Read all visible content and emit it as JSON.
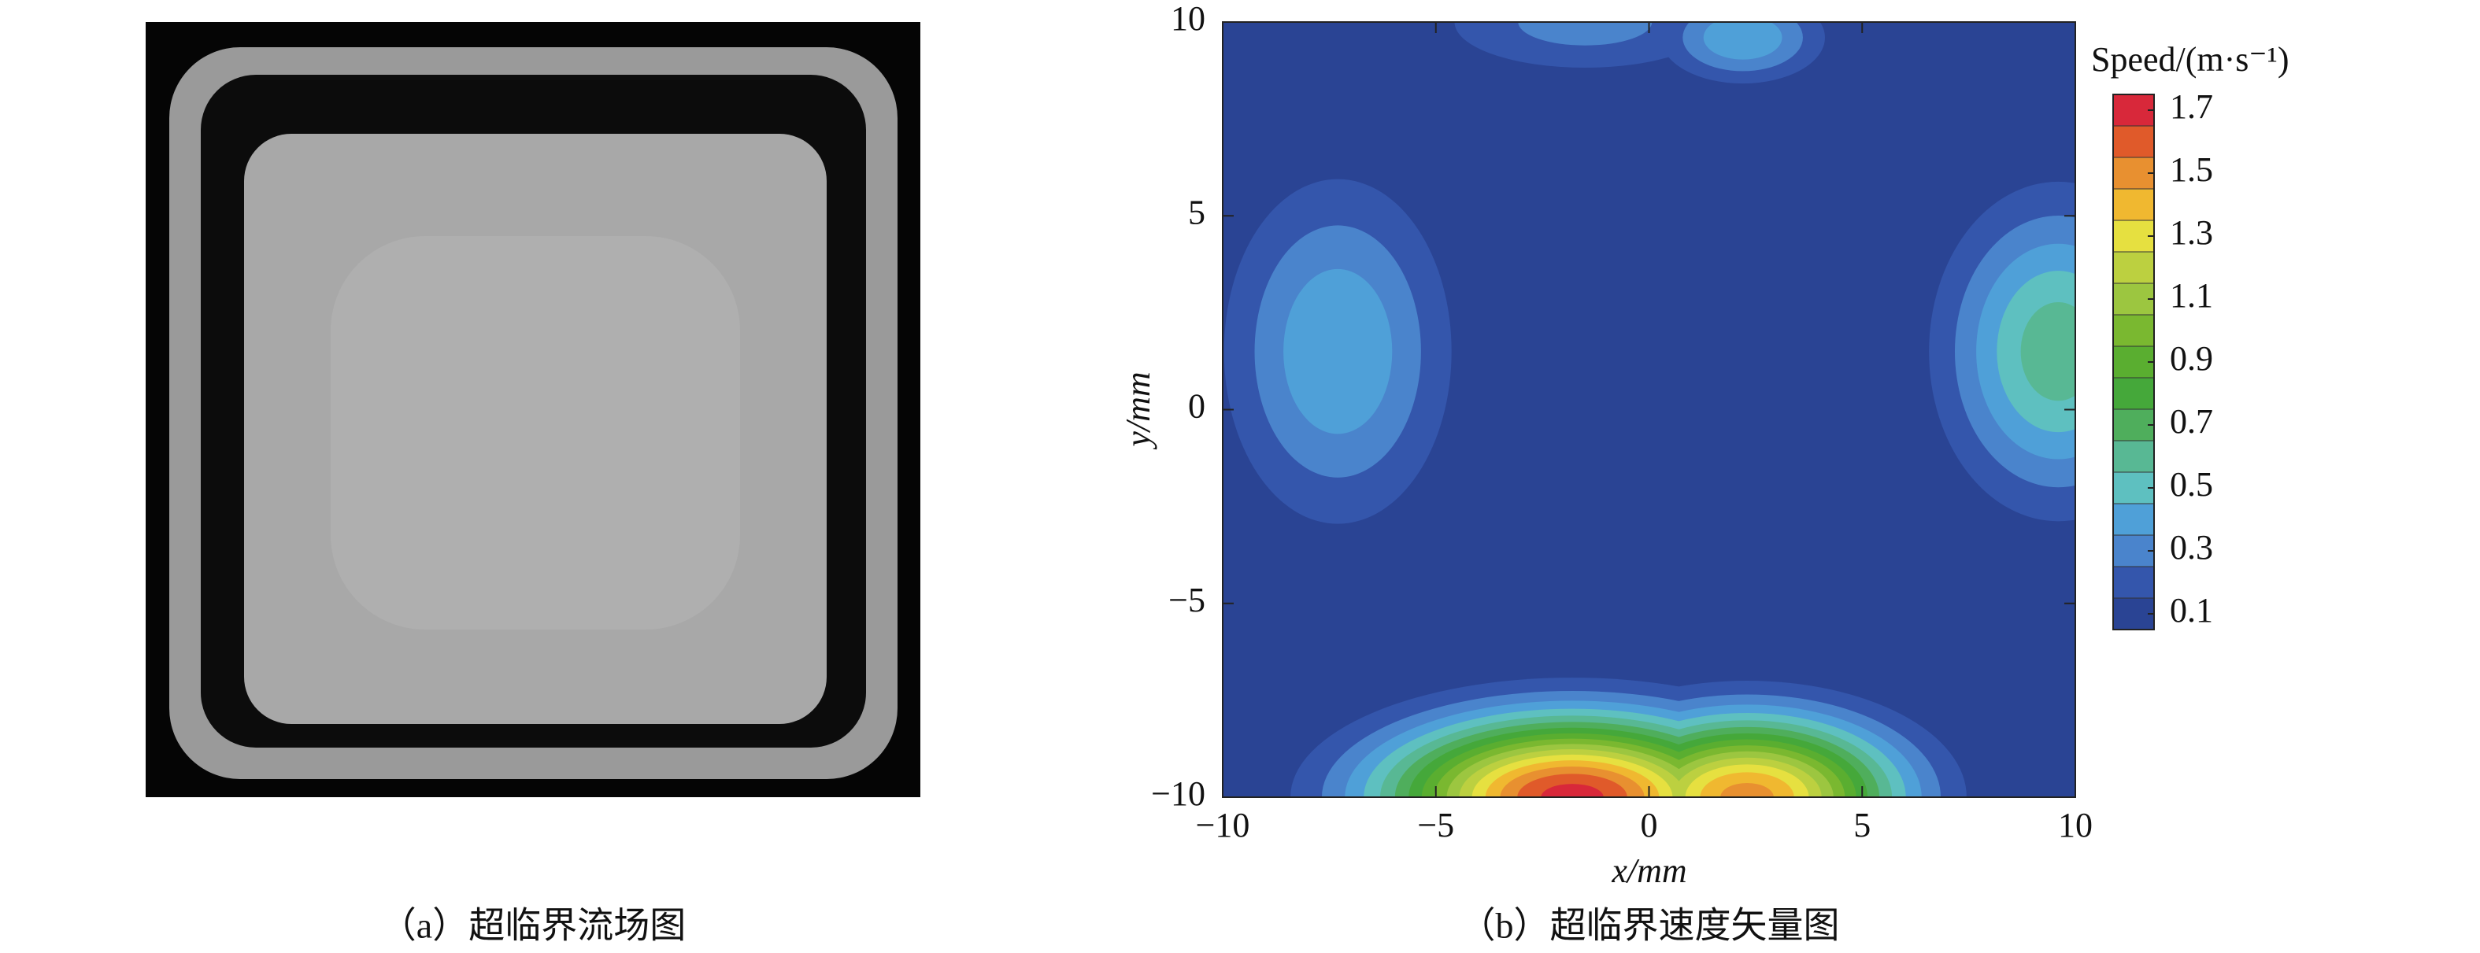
{
  "panel_a": {
    "caption": "（a）超临界流场图"
  },
  "chart_data": {
    "type": "contour",
    "caption": "（b）超临界速度矢量图",
    "xlabel": "x/mm",
    "ylabel": "y/mm",
    "xlim": [
      -10,
      10
    ],
    "ylim": [
      -10,
      10
    ],
    "xticks": [
      {
        "value": -10,
        "label": "−10"
      },
      {
        "value": -5,
        "label": "−5"
      },
      0,
      5,
      10
    ],
    "yticks": [
      {
        "value": -10,
        "label": "−10"
      },
      {
        "value": -5,
        "label": "−5"
      },
      0,
      5,
      10
    ],
    "blobs": [
      {
        "x": -1.5,
        "y": 10,
        "sx": 2.6,
        "sy": 1.0,
        "peak": 0.3
      },
      {
        "x": 2.2,
        "y": 9.6,
        "sx": 1.3,
        "sy": 0.8,
        "peak": 0.45
      },
      {
        "x": -7.3,
        "y": 1.5,
        "sx": 1.8,
        "sy": 3.0,
        "peak": 0.45
      },
      {
        "x": 9.6,
        "y": 1.5,
        "sx": 1.8,
        "sy": 2.6,
        "peak": 0.62
      },
      {
        "x": -1.8,
        "y": -10,
        "sx": 3.0,
        "sy": 1.4,
        "peak": 1.7
      },
      {
        "x": 2.3,
        "y": -10,
        "sx": 2.4,
        "sy": 1.4,
        "peak": 1.5
      }
    ],
    "colorbar": {
      "title": "Speed/(m·s⁻¹)",
      "clim": [
        0.05,
        1.75
      ],
      "levels": [
        0.1,
        0.2,
        0.3,
        0.4,
        0.5,
        0.6,
        0.7,
        0.8,
        0.9,
        1.0,
        1.1,
        1.2,
        1.3,
        1.4,
        1.5,
        1.6,
        1.7
      ],
      "colors": [
        "#2a4494",
        "#3456ac",
        "#4a84cc",
        "#4fa0d8",
        "#5ec0c0",
        "#58b894",
        "#4fae5c",
        "#45a83a",
        "#5aae30",
        "#7ab830",
        "#9cc640",
        "#bcd040",
        "#e6e040",
        "#f0b830",
        "#e89030",
        "#e05a2a",
        "#d8283a"
      ],
      "ticks": [
        0.1,
        0.3,
        0.5,
        0.7,
        0.9,
        1.1,
        1.3,
        1.5,
        1.7
      ]
    }
  }
}
